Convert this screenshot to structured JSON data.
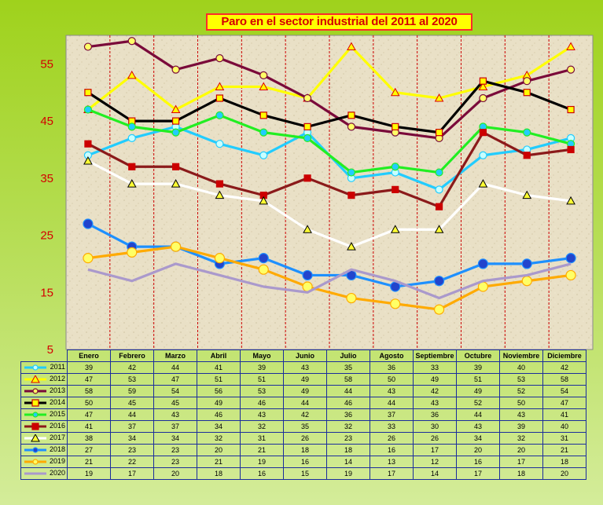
{
  "chart_data": {
    "type": "line",
    "title": "Paro en el sector industrial  del 2011 al 2020",
    "categories": [
      "Enero",
      "Febrero",
      "Marzo",
      "Abril",
      "Mayo",
      "Junio",
      "Julio",
      "Agosto",
      "Septiembre",
      "Octubre",
      "Noviembre",
      "Diciembre"
    ],
    "ylim": [
      5,
      60
    ],
    "yticks": [
      "5",
      "15",
      "25",
      "35",
      "45",
      "55"
    ],
    "grid": true,
    "xlabel": "",
    "ylabel": "",
    "series": [
      {
        "name": "2011",
        "color": "#22ccff",
        "marker": "circle",
        "marker_fill": "#c8ffff",
        "values": [
          39,
          42,
          44,
          41,
          39,
          43,
          35,
          36,
          33,
          39,
          40,
          42
        ]
      },
      {
        "name": "2012",
        "color": "#ffff00",
        "marker": "triangle",
        "marker_fill": "#ffff00",
        "values": [
          47,
          53,
          47,
          51,
          51,
          49,
          58,
          50,
          49,
          51,
          53,
          58
        ]
      },
      {
        "name": "2013",
        "color": "#7a0a3a",
        "marker": "circle",
        "marker_fill": "#ffff66",
        "values": [
          58,
          59,
          54,
          56,
          53,
          49,
          44,
          43,
          42,
          49,
          52,
          54
        ]
      },
      {
        "name": "2014",
        "color": "#000000",
        "marker": "square",
        "marker_fill": "#ffff00",
        "values": [
          50,
          45,
          45,
          49,
          46,
          44,
          46,
          44,
          43,
          52,
          50,
          47
        ]
      },
      {
        "name": "2015",
        "color": "#22ee22",
        "marker": "circle",
        "marker_fill": "#22ccff",
        "values": [
          47,
          44,
          43,
          46,
          43,
          42,
          36,
          37,
          36,
          44,
          43,
          41
        ]
      },
      {
        "name": "2016",
        "color": "#8b1a1a",
        "marker": "square",
        "marker_fill": "#cc0000",
        "values": [
          41,
          37,
          37,
          34,
          32,
          35,
          32,
          33,
          30,
          43,
          39,
          40
        ]
      },
      {
        "name": "2017",
        "color": "#ffffff",
        "marker": "triangle",
        "marker_fill": "#ffff33",
        "values": [
          38,
          34,
          34,
          32,
          31,
          26,
          23,
          26,
          26,
          34,
          32,
          31
        ]
      },
      {
        "name": "2018",
        "color": "#1e90ff",
        "marker": "circle",
        "marker_fill": "#2244cc",
        "values": [
          27,
          23,
          23,
          20,
          21,
          18,
          18,
          16,
          17,
          20,
          20,
          21
        ]
      },
      {
        "name": "2019",
        "color": "#ffaa00",
        "marker": "circle",
        "marker_fill": "#ffff66",
        "values": [
          21,
          22,
          23,
          21,
          19,
          16,
          14,
          13,
          12,
          16,
          17,
          18
        ]
      },
      {
        "name": "2020",
        "color": "#aa99cc",
        "marker": "none",
        "marker_fill": "#aa99cc",
        "values": [
          19,
          17,
          20,
          18,
          16,
          15,
          19,
          17,
          14,
          17,
          18,
          20
        ]
      }
    ]
  }
}
